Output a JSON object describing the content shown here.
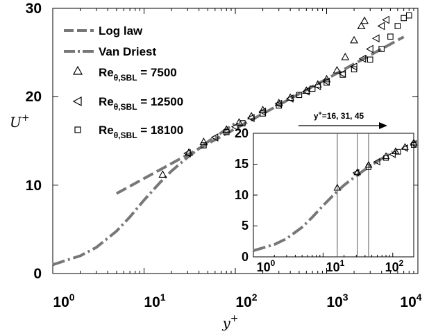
{
  "chart_data": [
    {
      "type": "line",
      "xlabel": "y",
      "xlabel_sup": "+",
      "ylabel": "U",
      "ylabel_sup": "+",
      "xscale": "log",
      "xlim": [
        1,
        10000
      ],
      "ylim": [
        0,
        30
      ],
      "x_ticks": [
        {
          "base": "10",
          "exp": "0"
        },
        {
          "base": "10",
          "exp": "1"
        },
        {
          "base": "10",
          "exp": "2"
        },
        {
          "base": "10",
          "exp": "3"
        },
        {
          "base": "10",
          "exp": "4"
        }
      ],
      "y_ticks": [
        "0",
        "10",
        "20",
        "30"
      ],
      "legend_placement": "top-left",
      "series": [
        {
          "name": "Log law",
          "style": "dashed",
          "color": "#777777",
          "x": [
            5,
            10,
            30,
            100,
            300,
            1000,
            3000,
            7000
          ],
          "y": [
            9.05,
            10.75,
            13.44,
            16.38,
            19.07,
            22.01,
            24.7,
            26.77
          ]
        },
        {
          "name": "Van Driest",
          "style": "dashdot",
          "color": "#777777",
          "x": [
            1,
            2,
            3,
            5,
            7,
            10,
            15,
            20,
            30,
            50,
            100
          ],
          "y": [
            1.0,
            2.0,
            2.95,
            4.8,
            6.4,
            8.3,
            10.3,
            11.6,
            13.15,
            14.9,
            17.0
          ]
        },
        {
          "name": "Re",
          "name_sub": "θ,SBL",
          "name_value": " = 7500",
          "marker": "triangle-up",
          "x": [
            16,
            31,
            45,
            80,
            110,
            150,
            200,
            300,
            400,
            600,
            800,
            1000,
            1300,
            1600,
            2000,
            2400,
            2600
          ],
          "y": [
            11.2,
            13.7,
            14.9,
            16.3,
            17.1,
            17.8,
            18.5,
            19.3,
            19.9,
            20.7,
            21.4,
            22.0,
            23.0,
            24.5,
            26.4,
            28.0,
            28.6
          ]
        },
        {
          "name": "Re",
          "name_sub": "θ,SBL",
          "name_value": " = 12500",
          "marker": "triangle-left",
          "x": [
            30,
            60,
            100,
            150,
            200,
            300,
            400,
            600,
            800,
            1000,
            1500,
            2000,
            2500,
            3000,
            3500,
            4000,
            4500
          ],
          "y": [
            13.6,
            15.4,
            16.6,
            17.6,
            18.3,
            19.2,
            19.8,
            20.6,
            21.2,
            21.7,
            22.6,
            23.4,
            24.3,
            25.4,
            26.6,
            28.0,
            28.7
          ]
        },
        {
          "name": "Re",
          "name_sub": "θ,SBL",
          "name_value": " = 18100",
          "marker": "square",
          "x": [
            45,
            80,
            120,
            200,
            300,
            500,
            700,
            1000,
            1500,
            2000,
            3000,
            4000,
            5000,
            6000,
            7000,
            8000
          ],
          "y": [
            14.5,
            16.0,
            17.0,
            18.1,
            19.0,
            20.2,
            20.9,
            21.6,
            22.5,
            23.1,
            24.2,
            25.4,
            26.8,
            28.0,
            28.9,
            29.2
          ]
        }
      ]
    },
    {
      "type": "line",
      "inset": true,
      "xscale": "log",
      "xlim": [
        1,
        200
      ],
      "ylim": [
        0,
        20
      ],
      "x_ticks": [
        {
          "base": "10",
          "exp": "0"
        },
        {
          "base": "10",
          "exp": "1"
        },
        {
          "base": "10",
          "exp": "2"
        }
      ],
      "y_ticks": [
        "0",
        "5",
        "10",
        "15",
        "20"
      ],
      "vertical_lines_x": [
        16,
        31,
        45
      ],
      "annotation": "y",
      "annotation_sup": "+",
      "annotation_value": "=16, 31, 45"
    }
  ]
}
